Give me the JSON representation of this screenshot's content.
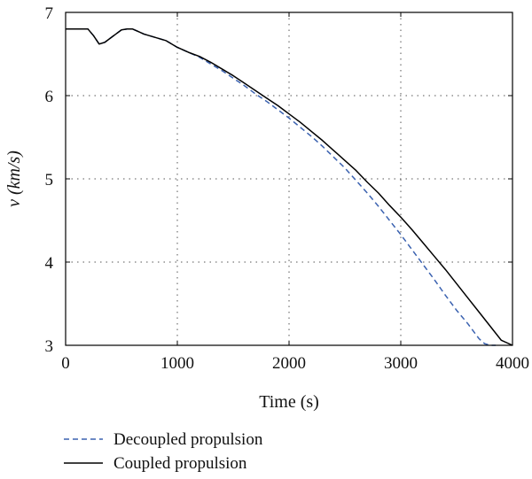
{
  "chart_data": {
    "type": "line",
    "xlabel": "Time (s)",
    "ylabel": "v (km/s)",
    "xlim": [
      0,
      4000
    ],
    "ylim": [
      3,
      7
    ],
    "xticks": [
      0,
      1000,
      2000,
      3000,
      4000
    ],
    "yticks": [
      3,
      4,
      5,
      6,
      7
    ],
    "grid": true,
    "legend_position": "bottom-left, below plot",
    "series": [
      {
        "name": "Decoupled propulsion",
        "style": "dashed",
        "color": "#3b62b0",
        "x": [
          0,
          200,
          250,
          300,
          350,
          400,
          450,
          500,
          550,
          600,
          650,
          700,
          800,
          900,
          1000,
          1100,
          1200,
          1300,
          1400,
          1500,
          1600,
          1700,
          1800,
          1900,
          2000,
          2100,
          2200,
          2300,
          2400,
          2500,
          2600,
          2700,
          2800,
          2900,
          3000,
          3100,
          3200,
          3300,
          3400,
          3500,
          3600,
          3700,
          3750,
          3800,
          3850
        ],
        "y": [
          6.8,
          6.8,
          6.72,
          6.62,
          6.64,
          6.69,
          6.74,
          6.79,
          6.8,
          6.8,
          6.77,
          6.74,
          6.7,
          6.66,
          6.58,
          6.52,
          6.46,
          6.38,
          6.3,
          6.21,
          6.12,
          6.02,
          5.93,
          5.83,
          5.73,
          5.62,
          5.51,
          5.39,
          5.26,
          5.13,
          4.98,
          4.83,
          4.67,
          4.5,
          4.33,
          4.15,
          3.97,
          3.79,
          3.6,
          3.42,
          3.26,
          3.08,
          3.02,
          3.0,
          3.0
        ]
      },
      {
        "name": "Coupled propulsion",
        "style": "solid",
        "color": "#000000",
        "x": [
          0,
          200,
          250,
          300,
          350,
          400,
          450,
          500,
          550,
          600,
          650,
          700,
          800,
          900,
          1000,
          1100,
          1200,
          1300,
          1400,
          1500,
          1600,
          1700,
          1800,
          1900,
          2000,
          2100,
          2200,
          2300,
          2400,
          2500,
          2600,
          2700,
          2800,
          2900,
          3000,
          3100,
          3200,
          3300,
          3400,
          3500,
          3600,
          3700,
          3800,
          3900,
          4000
        ],
        "y": [
          6.8,
          6.8,
          6.72,
          6.62,
          6.64,
          6.69,
          6.74,
          6.79,
          6.8,
          6.8,
          6.77,
          6.74,
          6.7,
          6.66,
          6.58,
          6.52,
          6.47,
          6.4,
          6.32,
          6.24,
          6.15,
          6.06,
          5.97,
          5.88,
          5.78,
          5.68,
          5.57,
          5.46,
          5.34,
          5.22,
          5.1,
          4.96,
          4.83,
          4.68,
          4.54,
          4.39,
          4.23,
          4.07,
          3.91,
          3.74,
          3.57,
          3.4,
          3.23,
          3.06,
          3.0
        ]
      }
    ]
  }
}
